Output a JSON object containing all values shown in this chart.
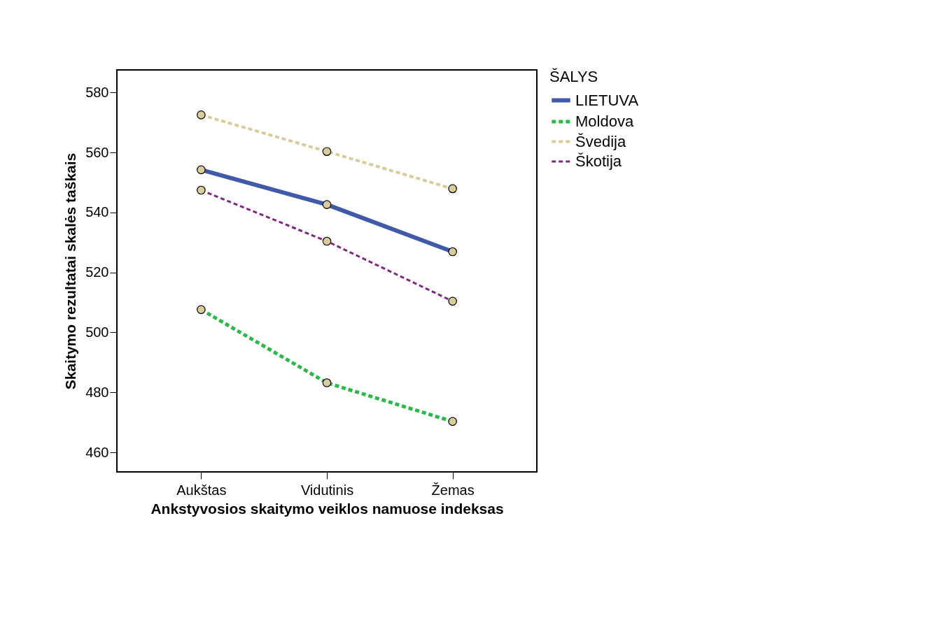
{
  "chart_data": {
    "type": "line",
    "xlabel": "Ankstyvosios skaitymo veiklos namuose indeksas",
    "ylabel": "Skaitymo rezultatai skalės taškais",
    "legend_title": "ŠALYS",
    "categories": [
      "Aukštas",
      "Vidutinis",
      "Žemas"
    ],
    "series": [
      {
        "name": "LIETUVA",
        "color": "#4059a8",
        "line_style": "solid",
        "values": [
          554.2,
          542.6,
          526.9
        ]
      },
      {
        "name": "Moldova",
        "color": "#2db84b",
        "line_style": "dashed",
        "values": [
          507.6,
          483.2,
          470.3
        ]
      },
      {
        "name": "Švedija",
        "color": "#d8cc9a",
        "line_style": "dashed",
        "values": [
          572.5,
          560.3,
          547.9
        ]
      },
      {
        "name": "Škotija",
        "color": "#7b2a7e",
        "line_style": "dashed",
        "values": [
          547.4,
          530.4,
          510.4
        ]
      }
    ],
    "ylim": [
      453.5,
      587.5
    ],
    "yticks": [
      460,
      480,
      500,
      520,
      540,
      560,
      580
    ],
    "grid": false,
    "legend": "right",
    "marker": "circle"
  }
}
